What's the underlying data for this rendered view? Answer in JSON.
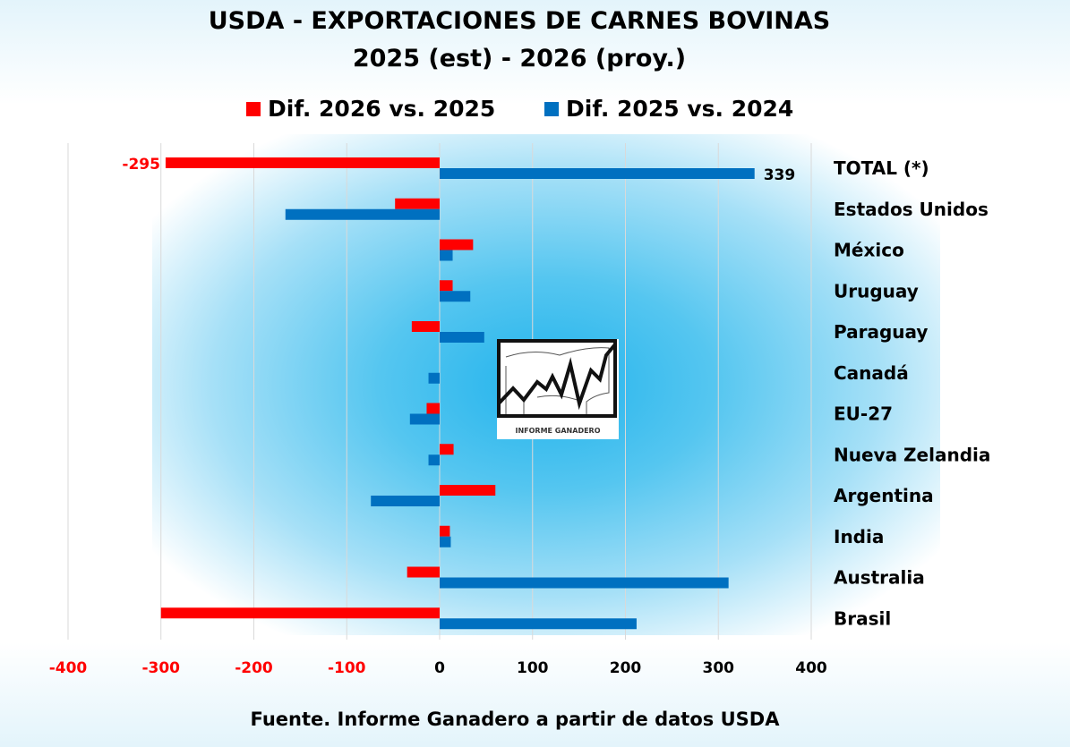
{
  "chart_data": {
    "type": "bar",
    "orientation": "horizontal",
    "title": "USDA - EXPORTACIONES DE CARNES BOVINAS",
    "subtitle": "2025 (est)  -  2026 (proy.)",
    "categories": [
      "TOTAL (*)",
      "Estados Unidos",
      "México",
      "Uruguay",
      "Paraguay",
      "Canadá",
      "EU-27",
      "Nueva Zelandia",
      "Argentina",
      "India",
      "Australia",
      "Brasil"
    ],
    "series": [
      {
        "name": "Dif. 2026 vs. 2025",
        "color": "#ff0000",
        "values": [
          -295,
          -48,
          36,
          14,
          -30,
          0,
          -14,
          15,
          60,
          11,
          -35,
          -300
        ]
      },
      {
        "name": "Dif. 2025 vs. 2024",
        "color": "#0070c0",
        "values": [
          339,
          -166,
          14,
          33,
          48,
          -12,
          -32,
          -12,
          -74,
          12,
          311,
          212
        ]
      }
    ],
    "data_labels": [
      {
        "category": "TOTAL (*)",
        "series": 0,
        "text": "-295"
      },
      {
        "category": "TOTAL (*)",
        "series": 1,
        "text": "339"
      }
    ],
    "xlim": [
      -400,
      400
    ],
    "xticks": [
      "-400",
      "-300",
      "-200",
      "-100",
      "0",
      "100",
      "200",
      "300",
      "400"
    ],
    "grid": true,
    "legend": "top",
    "source": "Fuente. Informe Ganadero a partir de datos USDA"
  },
  "logo": {
    "text": "INFORME GANADERO"
  }
}
